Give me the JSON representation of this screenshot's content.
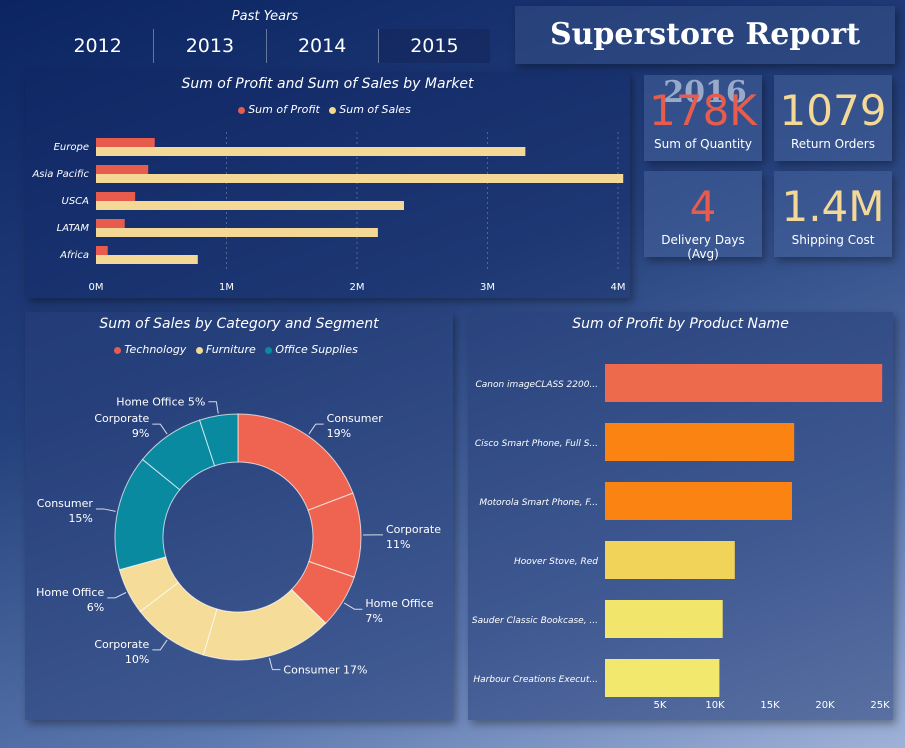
{
  "slicer": {
    "title": "Past Years",
    "years": [
      "2012",
      "2013",
      "2014",
      "2015"
    ]
  },
  "report_title": "Superstore Report 2016",
  "kpis": [
    {
      "value": "178K",
      "label": "Sum of Quantity",
      "color": "#e85c4e"
    },
    {
      "value": "1079",
      "label": "Return Orders",
      "color": "#f3d995"
    },
    {
      "value": "4",
      "label": "Delivery Days (Avg)",
      "color": "#e85c4e"
    },
    {
      "value": "1.4M",
      "label": "Shipping Cost",
      "color": "#f3d995"
    }
  ],
  "market_chart": {
    "title": "Sum of Profit and Sum of Sales by Market",
    "legend": [
      {
        "label": "Sum of Profit",
        "color": "#e85c4e"
      },
      {
        "label": "Sum of Sales",
        "color": "#f3d995"
      }
    ]
  },
  "category_chart": {
    "title": "Sum of Sales by Category and Segment",
    "legend": [
      {
        "label": "Technology",
        "color": "#e85c4e"
      },
      {
        "label": "Furniture",
        "color": "#f3d995"
      },
      {
        "label": "Office Supplies",
        "color": "#0a8aa0"
      }
    ]
  },
  "product_chart": {
    "title": "Sum of Profit by Product Name"
  },
  "chart_data": [
    {
      "type": "bar",
      "orientation": "horizontal",
      "title": "Sum of Profit and Sum of Sales by Market",
      "categories": [
        "Europe",
        "Asia Pacific",
        "USCA",
        "LATAM",
        "Africa"
      ],
      "series": [
        {
          "name": "Sum of Profit",
          "color": "#e85c4e",
          "values": [
            450000,
            400000,
            300000,
            220000,
            90000
          ]
        },
        {
          "name": "Sum of Sales",
          "color": "#f3d995",
          "values": [
            3290000,
            4040000,
            2360000,
            2160000,
            780000
          ]
        }
      ],
      "xlim": [
        0,
        4000000
      ],
      "xticks": [
        {
          "value": 0,
          "label": "0M"
        },
        {
          "value": 1000000,
          "label": "1M"
        },
        {
          "value": 2000000,
          "label": "2M"
        },
        {
          "value": 3000000,
          "label": "3M"
        },
        {
          "value": 4000000,
          "label": "4M"
        }
      ],
      "grid": true,
      "legend_position": "top"
    },
    {
      "type": "pie",
      "donut": true,
      "title": "Sum of Sales by Category and Segment",
      "slices": [
        {
          "category": "Technology",
          "label": "Consumer 19%",
          "value": 19,
          "color": "#ee6450"
        },
        {
          "category": "Technology",
          "label": "Corporate 11%",
          "value": 11,
          "color": "#ee6450"
        },
        {
          "category": "Technology",
          "label": "Home Office 7%",
          "value": 7,
          "color": "#ee6450"
        },
        {
          "category": "Furniture",
          "label": "Consumer 17%",
          "value": 17,
          "color": "#f5dc98"
        },
        {
          "category": "Furniture",
          "label": "Corporate 10%",
          "value": 10,
          "color": "#f5dc98"
        },
        {
          "category": "Furniture",
          "label": "Home Office 6%",
          "value": 6,
          "color": "#f5dc98"
        },
        {
          "category": "Office Supplies",
          "label": "Consumer 15%",
          "value": 15,
          "color": "#0a8aa0"
        },
        {
          "category": "Office Supplies",
          "label": "Corporate 9%",
          "value": 9,
          "color": "#0a8aa0"
        },
        {
          "category": "Office Supplies",
          "label": "Home Office 5%",
          "value": 5,
          "color": "#0a8aa0"
        }
      ],
      "legend_position": "top"
    },
    {
      "type": "bar",
      "orientation": "horizontal",
      "title": "Sum of Profit by Product Name",
      "categories": [
        "Canon imageCLASS 2200...",
        "Cisco Smart Phone, Full S...",
        "Motorola Smart Phone, F...",
        "Hoover Stove, Red",
        "Sauder Classic Bookcase, ...",
        "Harbour Creations Execut..."
      ],
      "values": [
        25200,
        17200,
        17000,
        11800,
        10700,
        10400
      ],
      "colors": [
        "#ee6a4c",
        "#fb8312",
        "#fb8312",
        "#f2d35a",
        "#f2e56c",
        "#f2e86e"
      ],
      "xlim": [
        0,
        25000
      ],
      "xticks": [
        {
          "value": 5000,
          "label": "5K"
        },
        {
          "value": 10000,
          "label": "10K"
        },
        {
          "value": 15000,
          "label": "15K"
        },
        {
          "value": 20000,
          "label": "20K"
        },
        {
          "value": 25000,
          "label": "25K"
        }
      ],
      "grid": false
    }
  ]
}
